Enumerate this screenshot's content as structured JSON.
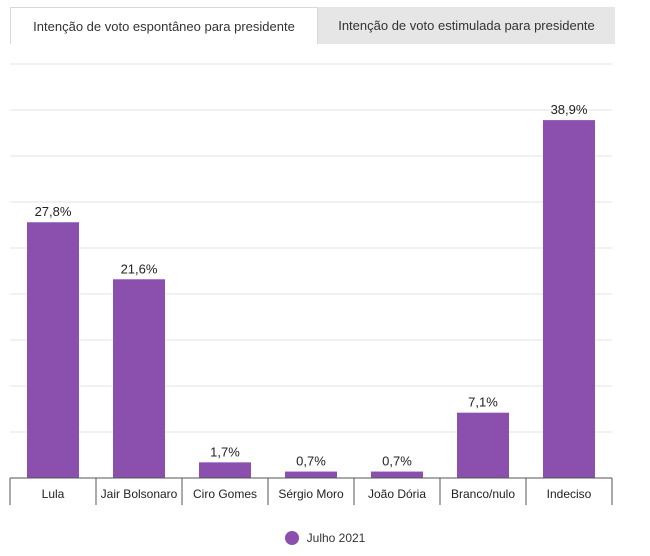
{
  "tabs": [
    {
      "label": "Intenção de voto espontâneo para presidente",
      "active": true
    },
    {
      "label": "Intenção de voto estimulada para presidente",
      "active": false
    }
  ],
  "colors": {
    "bar": "#8b4fae",
    "grid": "#e3e3e3",
    "axis": "#555555"
  },
  "chart_data": {
    "type": "bar",
    "categories": [
      "Lula",
      "Jair Bolsonaro",
      "Ciro Gomes",
      "Sérgio Moro",
      "João Dória",
      "Branco/nulo",
      "Indeciso"
    ],
    "series": [
      {
        "name": "Julho 2021",
        "values": [
          27.8,
          21.6,
          1.7,
          0.7,
          0.7,
          7.1,
          38.9
        ]
      }
    ],
    "data_labels": [
      "27,8%",
      "21,6%",
      "1,7%",
      "0,7%",
      "0,7%",
      "7,1%",
      "38,9%"
    ],
    "ylim": [
      0,
      45
    ],
    "grid": true,
    "legend_position": "bottom-center",
    "title": "",
    "xlabel": "",
    "ylabel": ""
  },
  "legend": {
    "label": "Julho 2021"
  }
}
